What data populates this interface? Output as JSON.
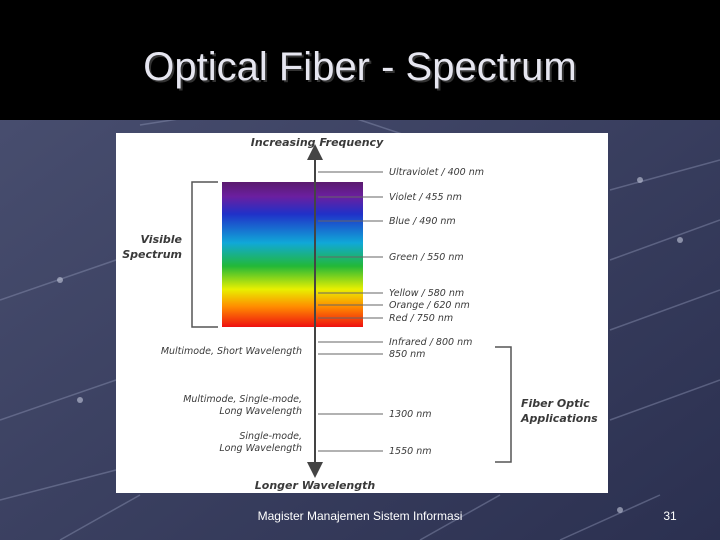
{
  "title": "Optical Fiber - Spectrum",
  "diagram": {
    "top_label": "Increasing Frequency",
    "bottom_label": "Longer Wavelength",
    "bands": [
      "Ultraviolet / 400 nm",
      "Violet / 455 nm",
      "Blue / 490 nm",
      "Green / 550 nm",
      "Yellow / 580 nm",
      "Orange / 620 nm",
      "Red / 750 nm",
      "Infrared / 800 nm",
      "850 nm",
      "1300 nm",
      "1550 nm"
    ],
    "visible_label": [
      "Visible",
      "Spectrum"
    ],
    "left_labels": [
      [
        "Multimode, Short Wavelength"
      ],
      [
        "Multimode, Single-mode,",
        "Long Wavelength"
      ],
      [
        "Single-mode,",
        "Long Wavelength"
      ]
    ],
    "applications_label": [
      "Fiber Optic",
      "Applications"
    ]
  },
  "footer": {
    "text": "Magister Manajemen Sistem Informasi",
    "page": "31"
  }
}
